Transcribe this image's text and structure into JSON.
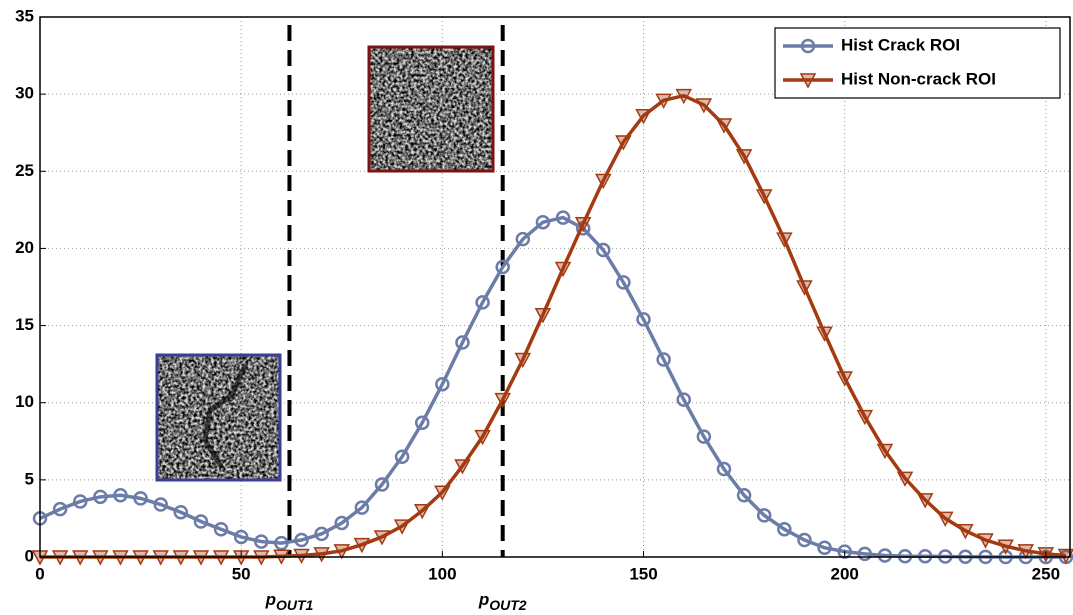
{
  "chart_data": {
    "type": "line",
    "x": [
      0,
      5,
      10,
      15,
      20,
      25,
      30,
      35,
      40,
      45,
      50,
      55,
      60,
      65,
      70,
      75,
      80,
      85,
      90,
      95,
      100,
      105,
      110,
      115,
      120,
      125,
      130,
      135,
      140,
      145,
      150,
      155,
      160,
      165,
      170,
      175,
      180,
      185,
      190,
      195,
      200,
      205,
      210,
      215,
      220,
      225,
      230,
      235,
      240,
      245,
      250,
      255
    ],
    "series": [
      {
        "name": "Hist Crack ROI",
        "color": "#6b7ca8",
        "marker": "circle",
        "values": [
          2.5,
          3.1,
          3.6,
          3.9,
          4.0,
          3.8,
          3.4,
          2.9,
          2.3,
          1.8,
          1.3,
          1.0,
          0.9,
          1.1,
          1.5,
          2.2,
          3.2,
          4.7,
          6.5,
          8.7,
          11.2,
          13.9,
          16.5,
          18.8,
          20.6,
          21.7,
          22.0,
          21.3,
          19.9,
          17.8,
          15.4,
          12.8,
          10.2,
          7.8,
          5.7,
          4.0,
          2.7,
          1.8,
          1.1,
          0.6,
          0.35,
          0.2,
          0.1,
          0.05,
          0.05,
          0.03,
          0.02,
          0.01,
          0,
          0,
          0,
          0
        ]
      },
      {
        "name": "Hist Non-crack ROI",
        "color": "#a33a10",
        "marker": "triangle-down",
        "values": [
          0,
          0,
          0,
          0,
          0,
          0,
          0,
          0,
          0,
          0,
          0,
          0,
          0.05,
          0.1,
          0.2,
          0.4,
          0.8,
          1.3,
          2.0,
          3.0,
          4.2,
          5.9,
          7.8,
          10.2,
          12.8,
          15.7,
          18.7,
          21.6,
          24.4,
          26.9,
          28.6,
          29.6,
          29.9,
          29.3,
          28.0,
          26.0,
          23.4,
          20.6,
          17.5,
          14.5,
          11.6,
          9.1,
          6.9,
          5.1,
          3.7,
          2.5,
          1.7,
          1.1,
          0.7,
          0.4,
          0.2,
          0.1
        ]
      }
    ],
    "vlines": [
      {
        "x": 62,
        "label": "p",
        "subscript": "OUT1"
      },
      {
        "x": 115,
        "label": "p",
        "subscript": "OUT2"
      }
    ],
    "xlim": [
      0,
      256
    ],
    "xticks": [
      0,
      50,
      100,
      150,
      200,
      250
    ],
    "ylim": [
      0,
      35
    ],
    "yticks": [
      0,
      5,
      10,
      15,
      20,
      25,
      30,
      35
    ],
    "grid": true,
    "legend": "upper right"
  }
}
